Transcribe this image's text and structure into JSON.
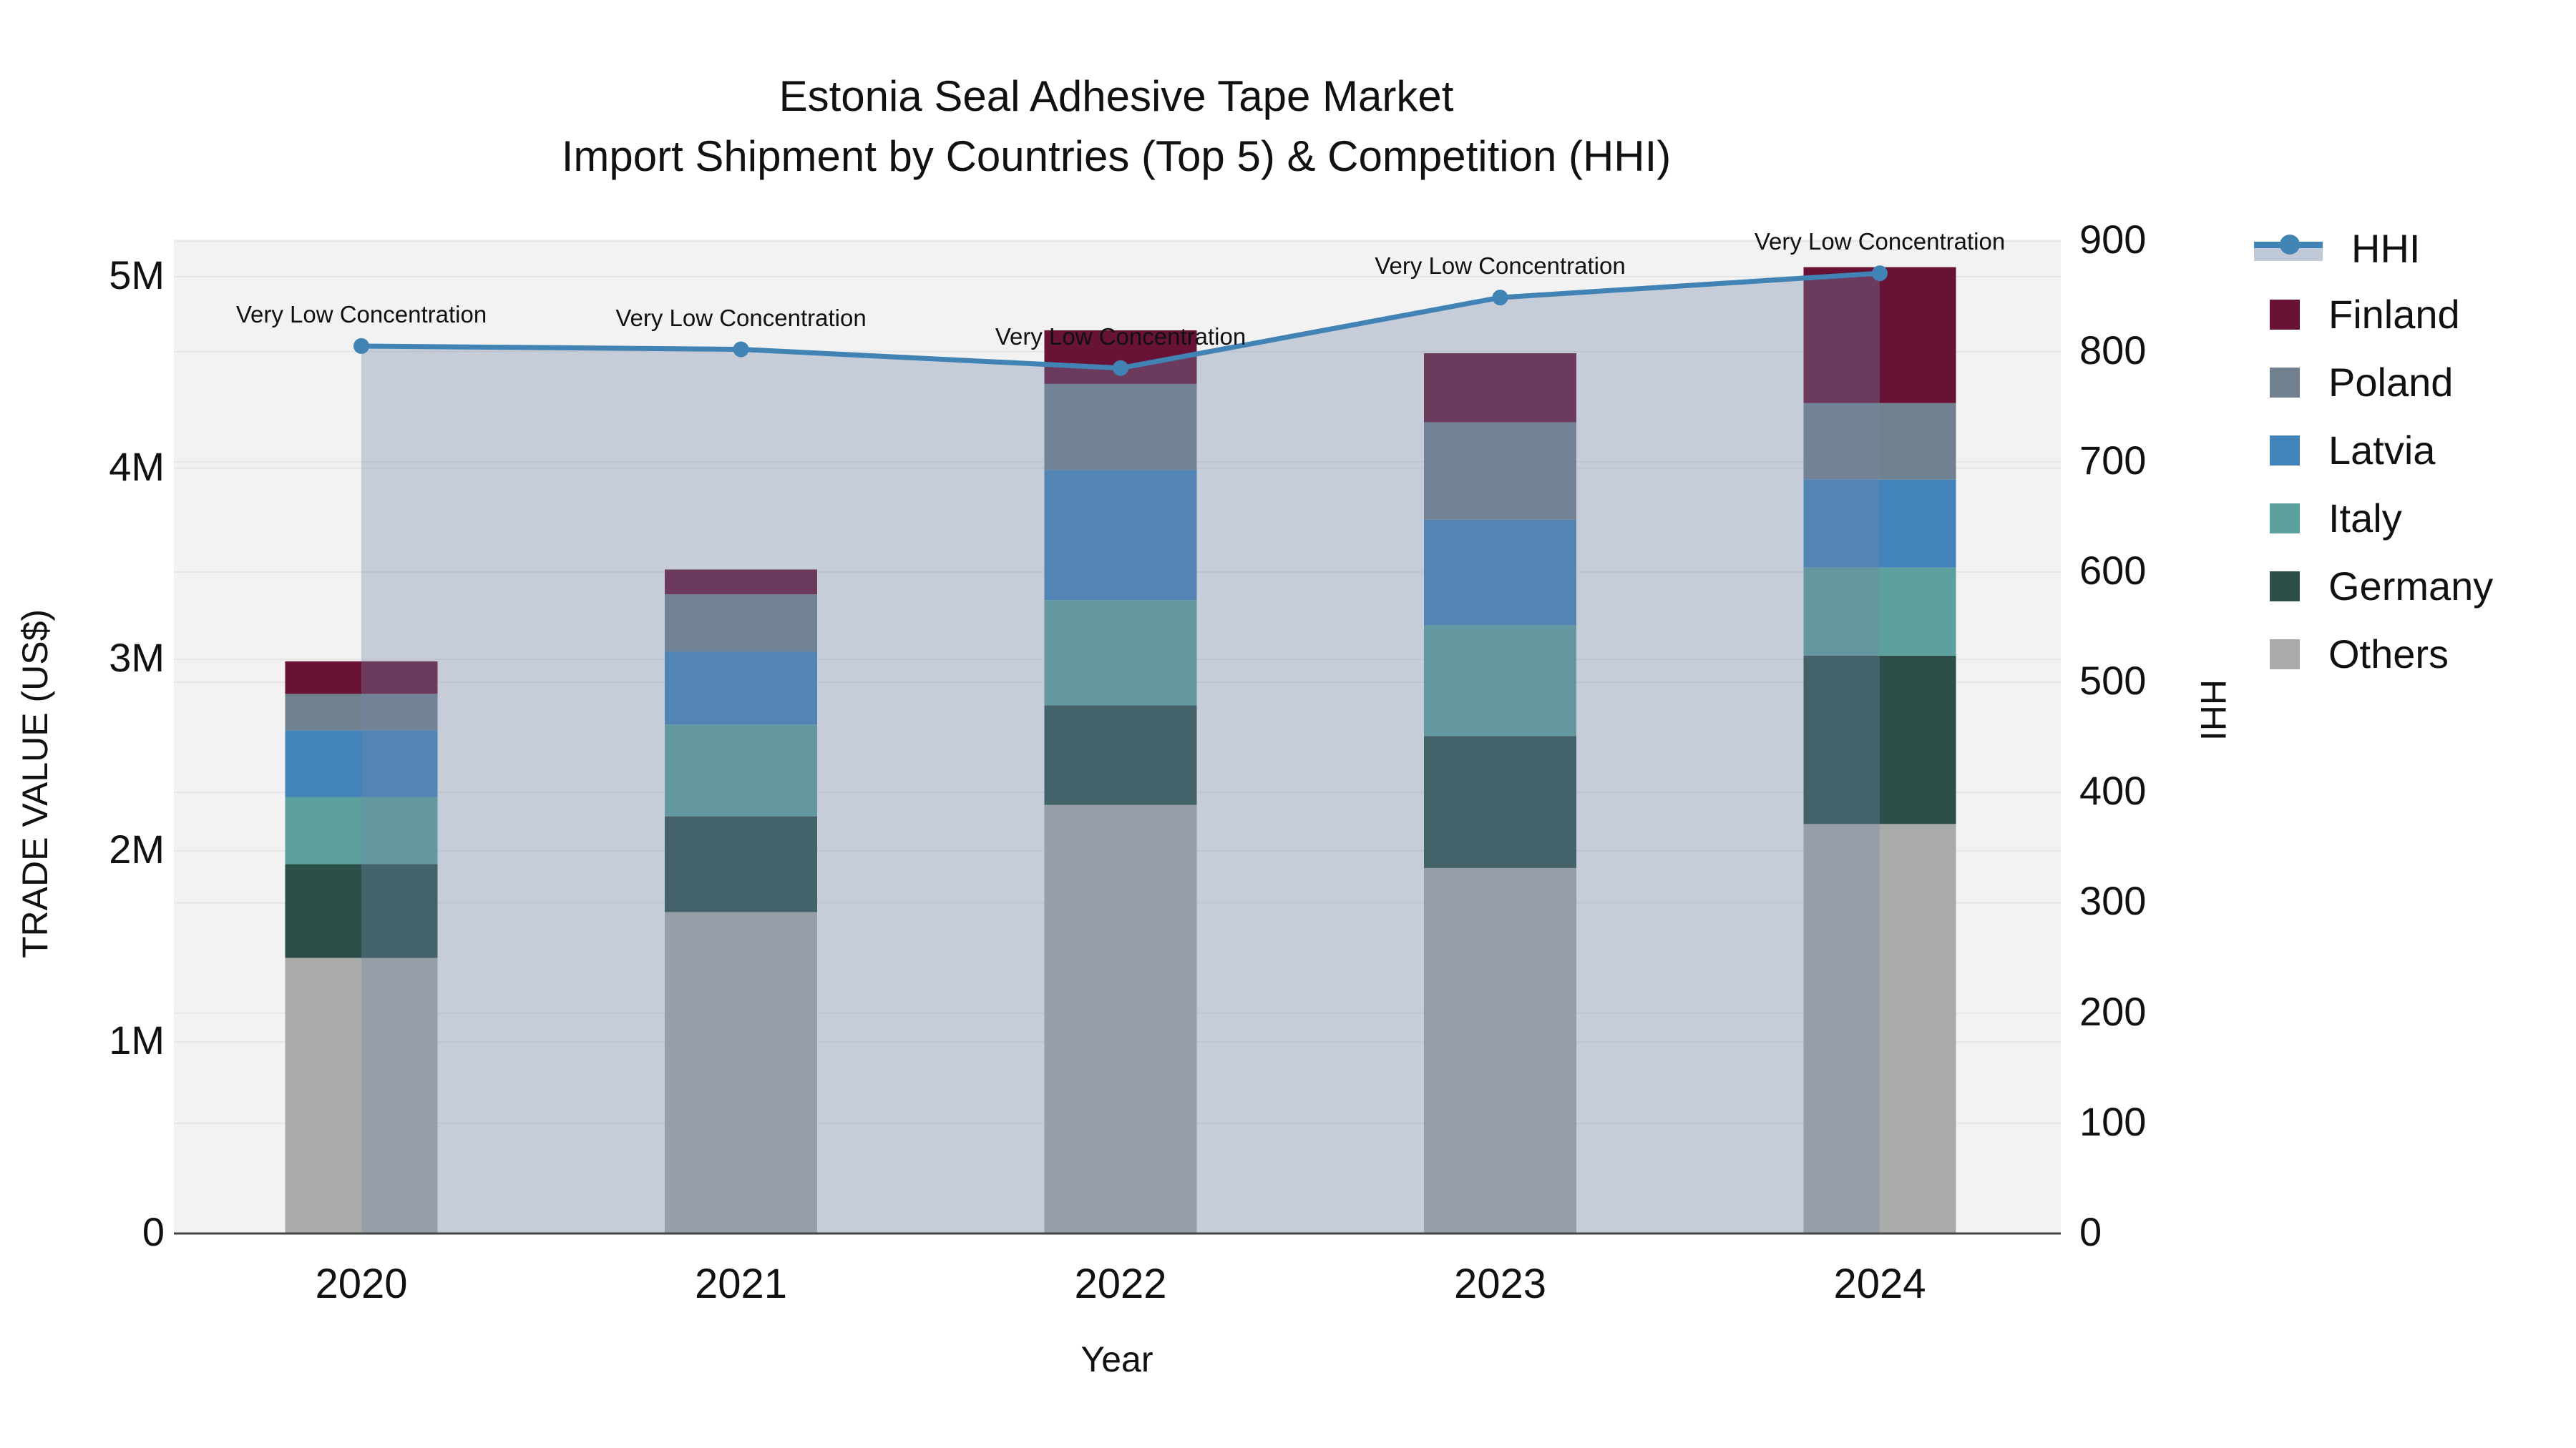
{
  "title": {
    "line1": "Estonia Seal Adhesive Tape Market",
    "line2": "Import Shipment by Countries (Top 5) & Competition (HHI)"
  },
  "axes": {
    "x": {
      "title": "Year",
      "categories": [
        "2020",
        "2021",
        "2022",
        "2023",
        "2024"
      ]
    },
    "y_left": {
      "title": "TRADE VALUE (US$)",
      "ticks": [
        "0",
        "1M",
        "2M",
        "3M",
        "4M",
        "5M"
      ]
    },
    "y_right": {
      "title": "HHI",
      "ticks": [
        "0",
        "100",
        "200",
        "300",
        "400",
        "500",
        "600",
        "700",
        "800",
        "900"
      ]
    }
  },
  "legend": {
    "items": [
      {
        "label": "HHI",
        "type": "line",
        "color": "#4183B5"
      },
      {
        "label": "Finland",
        "type": "square",
        "color": "#681336"
      },
      {
        "label": "Poland",
        "type": "square",
        "color": "#72818F"
      },
      {
        "label": "Latvia",
        "type": "square",
        "color": "#4284BA"
      },
      {
        "label": "Italy",
        "type": "square",
        "color": "#5CA19D"
      },
      {
        "label": "Germany",
        "type": "square",
        "color": "#2D4F4A"
      },
      {
        "label": "Others",
        "type": "square",
        "color": "#A9ABA8"
      }
    ]
  },
  "annotation_text": "Very Low Concentration",
  "colors": {
    "plot_bg": "#F2F2F2",
    "grid": "#E6E6E6",
    "axis_line": "#444444",
    "hhi_line": "#4183B5",
    "hhi_fill": "rgba(114,135,168,0.34)"
  },
  "chart_data": {
    "type": "bar+line combo (stacked bars with HHI line on secondary axis)",
    "categories": [
      "2020",
      "2021",
      "2022",
      "2023",
      "2024"
    ],
    "bar_series": [
      {
        "name": "Finland",
        "color": "#681336",
        "values_million_usd": [
          0.17,
          0.13,
          0.28,
          0.36,
          0.71
        ]
      },
      {
        "name": "Poland",
        "color": "#72818F",
        "values_million_usd": [
          0.19,
          0.3,
          0.45,
          0.51,
          0.4
        ]
      },
      {
        "name": "Latvia",
        "color": "#4284BA",
        "values_million_usd": [
          0.35,
          0.38,
          0.68,
          0.55,
          0.46
        ]
      },
      {
        "name": "Italy",
        "color": "#5CA19D",
        "values_million_usd": [
          0.35,
          0.48,
          0.55,
          0.58,
          0.46
        ]
      },
      {
        "name": "Germany",
        "color": "#2D4F4A",
        "values_million_usd": [
          0.49,
          0.5,
          0.52,
          0.69,
          0.88
        ]
      },
      {
        "name": "Others",
        "color": "#A9ABA8",
        "values_million_usd": [
          1.44,
          1.68,
          2.24,
          1.91,
          2.14
        ]
      }
    ],
    "stack_totals_million_usd": [
      2.98,
      3.46,
      4.71,
      4.6,
      5.06
    ],
    "stack_order_bottom_to_top": [
      "Others",
      "Germany",
      "Italy",
      "Latvia",
      "Poland",
      "Finland"
    ],
    "line_series": {
      "name": "HHI",
      "axis": "right",
      "color": "#4183B5",
      "fill": "tozeroy",
      "fill_color": "rgba(114,135,168,0.34)",
      "values": [
        805,
        802,
        785,
        849,
        871
      ]
    },
    "annotations": [
      {
        "text": "Very Low Concentration",
        "x": "2020",
        "hhi": 805
      },
      {
        "text": "Very Low Concentration",
        "x": "2021",
        "hhi": 802
      },
      {
        "text": "Very Low Concentration",
        "x": "2022",
        "hhi": 785
      },
      {
        "text": "Very Low Concentration",
        "x": "2023",
        "hhi": 849
      },
      {
        "text": "Very Low Concentration",
        "x": "2024",
        "hhi": 871
      }
    ],
    "xlabel": "Year",
    "ylabel_left": "TRADE VALUE (US$)",
    "ylabel_right": "HHI",
    "ylim_left_million_usd": [
      0,
      5.19
    ],
    "ylim_right_hhi": [
      0,
      901
    ],
    "grid": "on (both axes, horizontal lines)",
    "legend_position": "right, outside plot"
  }
}
